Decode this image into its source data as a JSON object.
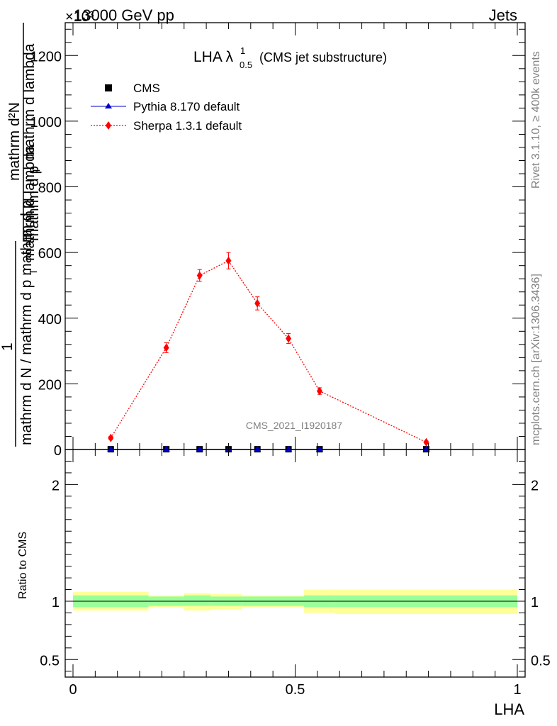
{
  "header": {
    "energy_label": "13000 GeV pp",
    "category_label": "Jets",
    "exponent_label": "×10³"
  },
  "side": {
    "rivet_label": "Rivet 3.1.10, ≥ 400k events",
    "mcplots_label": "mcplots.cern.ch [arXiv:1306.3436]"
  },
  "chart_data": [
    {
      "type": "line",
      "title": "LHA λ",
      "title_superscript": "1",
      "title_subscript": "0.5",
      "title_suffix": "(CMS jet substructure)",
      "ylabel_numerator_1": "mathrm d²N",
      "ylabel_denominator_1": "mathrm d p",
      "ylabel_denominator_1_sub": "T",
      "ylabel_denominator_1_rest": "mathrm d lambda",
      "ylabel_numerator_2": "1",
      "ylabel_denominator_2": "mathrm d N / mathrm d p mathrm d p",
      "ylabel_denominator_2_sub": "T",
      "ylabel_denominator_2_rest": "mathrm d lambda",
      "analysis_label": "CMS_2021_I1920187",
      "xlim": [
        0,
        1
      ],
      "ylim": [
        0,
        1300
      ],
      "y_ticks": [
        "0",
        "200",
        "400",
        "600",
        "800",
        "1000",
        "1200"
      ],
      "legend_position": "top-left",
      "series": [
        {
          "name": "CMS",
          "color": "#000000",
          "marker": "square",
          "x": [
            0.085,
            0.21,
            0.285,
            0.35,
            0.415,
            0.485,
            0.555,
            0.795
          ],
          "y": [
            0.8,
            0.8,
            0.8,
            0.8,
            0.8,
            0.8,
            0.8,
            0.8
          ]
        },
        {
          "name": "Pythia 8.170 default",
          "color": "#0000cc",
          "marker": "triangle",
          "x": [
            0.085,
            0.21,
            0.285,
            0.35,
            0.415,
            0.485,
            0.555,
            0.795
          ],
          "y": [
            0.5,
            0.5,
            0.5,
            0.5,
            0.5,
            0.5,
            0.5,
            0.5
          ]
        },
        {
          "name": "Sherpa 1.3.1 default",
          "color": "#ff0000",
          "marker": "diamond",
          "x": [
            0.085,
            0.21,
            0.285,
            0.35,
            0.415,
            0.485,
            0.555,
            0.795
          ],
          "y": [
            35,
            310,
            530,
            575,
            445,
            338,
            178,
            22
          ],
          "yerr": [
            5,
            15,
            18,
            25,
            20,
            15,
            10,
            4
          ]
        }
      ]
    },
    {
      "type": "area",
      "ylabel": "Ratio to CMS",
      "xlabel": "LHA",
      "xlim": [
        0,
        1
      ],
      "ylim": [
        0.35,
        2.3
      ],
      "x_ticks": [
        "0",
        "0.5",
        "1"
      ],
      "y_ticks": [
        "0.5",
        "1",
        "2"
      ],
      "reference_line": 1,
      "bands": {
        "edges": [
          0.0,
          0.17,
          0.25,
          0.31,
          0.38,
          0.52,
          0.59,
          1.0
        ],
        "inner_color": "#99ff99",
        "outer_color": "#ffff99",
        "inner": [
          [
            0.95,
            1.05
          ],
          [
            0.96,
            1.04
          ],
          [
            0.96,
            1.05
          ],
          [
            0.96,
            1.04
          ],
          [
            0.96,
            1.04
          ],
          [
            0.95,
            1.05
          ],
          [
            0.95,
            1.05
          ]
        ],
        "outer": [
          [
            0.92,
            1.08
          ],
          [
            0.95,
            1.05
          ],
          [
            0.92,
            1.07
          ],
          [
            0.93,
            1.06
          ],
          [
            0.95,
            1.05
          ],
          [
            0.9,
            1.1
          ],
          [
            0.89,
            1.1
          ]
        ]
      }
    }
  ]
}
